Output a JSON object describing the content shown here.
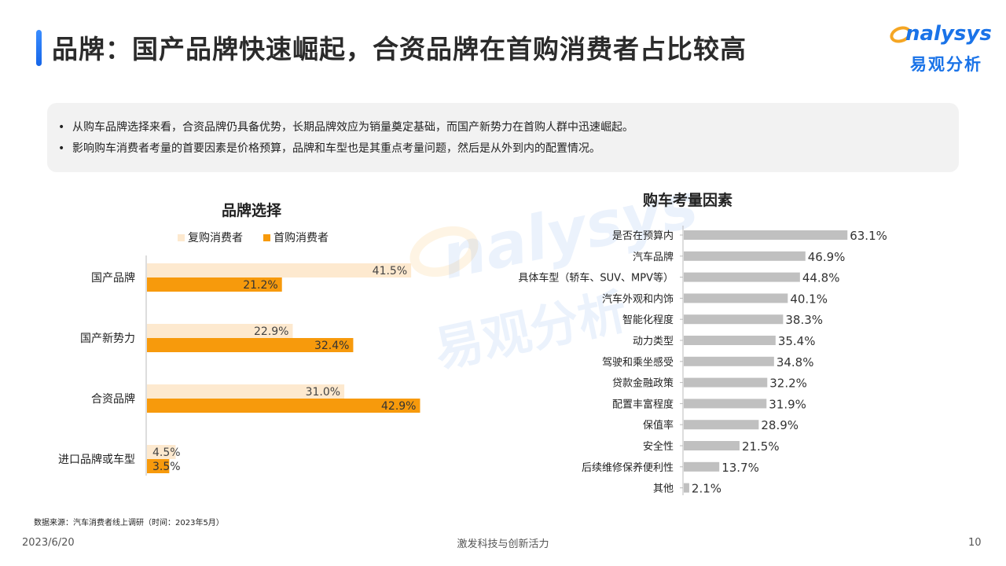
{
  "header": {
    "title": "品牌：国产品牌快速崛起，合资品牌在首购消费者占比较高",
    "logo_word": "nalysys",
    "logo_cn": "易观分析"
  },
  "summary": {
    "bullets": [
      "从购车品牌选择来看，合资品牌仍具备优势，长期品牌效应为销量奠定基础，而国产新势力在首购人群中迅速崛起。",
      "影响购车消费者考量的首要因素是价格预算，品牌和车型也是其重点考量问题，然后是从外到内的配置情况。"
    ]
  },
  "watermark": {
    "word": "nalysys",
    "cn": "易观分析"
  },
  "colors": {
    "repeat": "#fde9cf",
    "first": "#f79a0c",
    "factor": "#c0c0c0",
    "accent": "#1a73e8"
  },
  "chart_data": [
    {
      "type": "bar",
      "orientation": "horizontal",
      "title": "品牌选择",
      "categories": [
        "国产品牌",
        "国产新势力",
        "合资品牌",
        "进口品牌或车型"
      ],
      "series": [
        {
          "name": "复购消费者",
          "values": [
            41.5,
            22.9,
            31.0,
            4.5
          ]
        },
        {
          "name": "首购消费者",
          "values": [
            21.2,
            32.4,
            42.9,
            3.5
          ]
        }
      ],
      "value_labels": {
        "复购消费者": [
          "41.5%",
          "22.9%",
          "31.0%",
          "4.5%"
        ],
        "首购消费者": [
          "21.2%",
          "32.4%",
          "42.9%",
          "3.5%"
        ]
      },
      "legend": "top",
      "xlim": [
        0,
        45
      ]
    },
    {
      "type": "bar",
      "orientation": "horizontal",
      "title": "购车考量因素",
      "categories": [
        "是否在预算内",
        "汽车品牌",
        "具体车型（轿车、SUV、MPV等）",
        "汽车外观和内饰",
        "智能化程度",
        "动力类型",
        "驾驶和乘坐感受",
        "贷款金融政策",
        "配置丰富程度",
        "保值率",
        "安全性",
        "后续维修保养便利性",
        "其他"
      ],
      "values": [
        63.1,
        46.9,
        44.8,
        40.1,
        38.3,
        35.4,
        34.8,
        32.2,
        31.9,
        28.9,
        21.5,
        13.7,
        2.1
      ],
      "value_labels": [
        "63.1%",
        "46.9%",
        "44.8%",
        "40.1%",
        "38.3%",
        "35.4%",
        "34.8%",
        "32.2%",
        "31.9%",
        "28.9%",
        "21.5%",
        "13.7%",
        "2.1%"
      ],
      "xlim": [
        0,
        70
      ]
    }
  ],
  "footer": {
    "source": "数据来源：汽车消费者线上调研（时间：2023年5月）",
    "date": "2023/6/20",
    "slogan": "激发科技与创新活力",
    "page": "10"
  }
}
